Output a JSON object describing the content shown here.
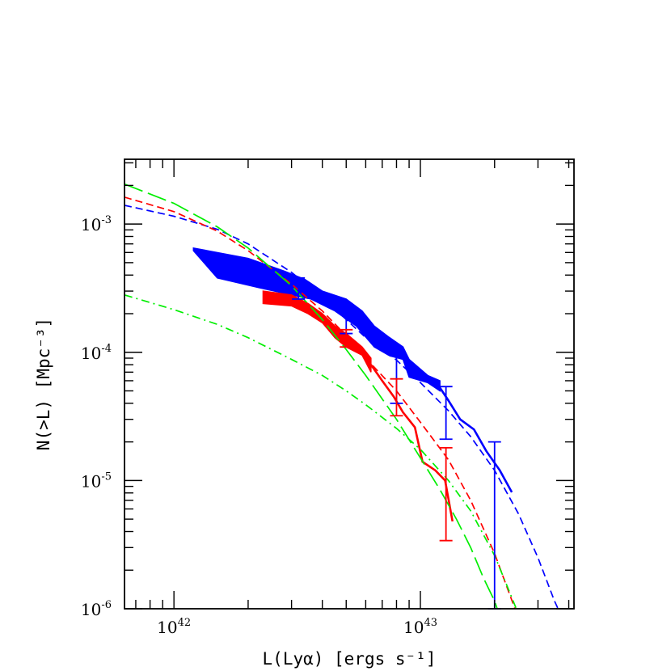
{
  "chart_data": {
    "type": "line",
    "title": "",
    "xlabel": "L(Lyα) [ergs s⁻¹]",
    "ylabel": "N(>L) [Mpc⁻³]",
    "xscale": "log",
    "yscale": "log",
    "xlim": [
      6.3e+41,
      4.2e+43
    ],
    "ylim": [
      1e-06,
      0.0032
    ],
    "x_major_ticks": [
      {
        "value": 1e+42,
        "base": "10",
        "exp": "42"
      },
      {
        "value": 1e+43,
        "base": "10",
        "exp": "43"
      }
    ],
    "y_major_ticks": [
      {
        "value": 0.001,
        "base": "10",
        "exp": "-3"
      },
      {
        "value": 0.0001,
        "base": "10",
        "exp": "-4"
      },
      {
        "value": 1e-05,
        "base": "10",
        "exp": "-5"
      },
      {
        "value": 1e-06,
        "base": "10",
        "exp": "-6"
      }
    ],
    "grid": false,
    "legend": "none",
    "series": [
      {
        "kind": "band",
        "color": "#0000ff",
        "upper": [
          [
            1.2e+42,
            0.00065
          ],
          [
            2e+42,
            0.00054
          ],
          [
            2.8e+42,
            0.00043
          ],
          [
            3.4e+42,
            0.00037
          ],
          [
            4e+42,
            0.0003
          ],
          [
            5e+42,
            0.00026
          ],
          [
            5.8e+42,
            0.00021
          ],
          [
            6.5e+42,
            0.00016
          ],
          [
            7.5e+42,
            0.00013
          ],
          [
            8.5e+42,
            0.00011
          ],
          [
            9e+42,
            8.8e-05
          ],
          [
            1.07e+43,
            6.6e-05
          ],
          [
            1.2e+43,
            6e-05
          ]
        ],
        "lower": [
          [
            1.2e+42,
            0.00062
          ],
          [
            1.5e+42,
            0.00038
          ],
          [
            2.2e+42,
            0.00032
          ],
          [
            3e+42,
            0.00028
          ],
          [
            3.6e+42,
            0.00026
          ],
          [
            4.5e+42,
            0.00021
          ],
          [
            5.5e+42,
            0.00016
          ],
          [
            6.5e+42,
            0.00011
          ],
          [
            7.5e+42,
            9.4e-05
          ],
          [
            8.5e+42,
            8.8e-05
          ],
          [
            9e+42,
            6.4e-05
          ],
          [
            1.07e+43,
            5.8e-05
          ],
          [
            1.2e+43,
            5e-05
          ]
        ]
      },
      {
        "kind": "band",
        "color": "#ff0000",
        "upper": [
          [
            2.3e+42,
            0.0003
          ],
          [
            3e+42,
            0.00028
          ],
          [
            3.5e+42,
            0.00024
          ],
          [
            4e+42,
            0.0002
          ],
          [
            4.5e+42,
            0.00016
          ],
          [
            5e+42,
            0.00014
          ],
          [
            5.8e+42,
            0.00011
          ],
          [
            6.3e+42,
            9e-05
          ]
        ],
        "lower": [
          [
            2.3e+42,
            0.00024
          ],
          [
            3e+42,
            0.00023
          ],
          [
            3.5e+42,
            0.0002
          ],
          [
            4e+42,
            0.00017
          ],
          [
            4.5e+42,
            0.00013
          ],
          [
            5e+42,
            0.00011
          ],
          [
            5.8e+42,
            9.5e-05
          ],
          [
            6.3e+42,
            7e-05
          ]
        ]
      },
      {
        "kind": "line",
        "style": "solid",
        "color": "#0000ff",
        "points": [
          [
            1.2e+43,
            5.3e-05
          ],
          [
            1.3e+43,
            4.2e-05
          ],
          [
            1.45e+43,
            3e-05
          ],
          [
            1.65e+43,
            2.5e-05
          ],
          [
            1.85e+43,
            1.7e-05
          ],
          [
            2.1e+43,
            1.2e-05
          ],
          [
            2.35e+43,
            8.1e-06
          ]
        ]
      },
      {
        "kind": "line",
        "style": "solid",
        "color": "#ff0000",
        "points": [
          [
            6.3e+42,
            8e-05
          ],
          [
            7e+42,
            6e-05
          ],
          [
            7.8e+42,
            4.5e-05
          ],
          [
            8.5e+42,
            3.4e-05
          ],
          [
            9.5e+42,
            2.6e-05
          ],
          [
            1.02e+43,
            1.4e-05
          ],
          [
            1.15e+43,
            1.2e-05
          ],
          [
            1.26e+43,
            1e-05
          ],
          [
            1.35e+43,
            4.8e-06
          ]
        ]
      },
      {
        "kind": "line",
        "style": "dashed",
        "color": "#0000ff",
        "points": [
          [
            6.3e+41,
            0.0014
          ],
          [
            1e+42,
            0.00115
          ],
          [
            1.5e+42,
            0.00091
          ],
          [
            2e+42,
            0.0007
          ],
          [
            3e+42,
            0.00042
          ],
          [
            4e+42,
            0.00027
          ],
          [
            5e+42,
            0.00018
          ],
          [
            6e+42,
            0.00013
          ],
          [
            8e+42,
            8.7e-05
          ],
          [
            1e+43,
            5.8e-05
          ],
          [
            1.3e+43,
            3.5e-05
          ],
          [
            1.6e+43,
            2.2e-05
          ],
          [
            2e+43,
            1.2e-05
          ],
          [
            2.5e+43,
            5.5e-06
          ],
          [
            3e+43,
            2.5e-06
          ],
          [
            3.5e+43,
            1.15e-06
          ],
          [
            3.62e+43,
            1e-06
          ]
        ]
      },
      {
        "kind": "line",
        "style": "dashed",
        "color": "#ff0000",
        "points": [
          [
            6.3e+41,
            0.00162
          ],
          [
            1e+42,
            0.00125
          ],
          [
            1.5e+42,
            0.00088
          ],
          [
            2e+42,
            0.00062
          ],
          [
            3e+42,
            0.00034
          ],
          [
            4e+42,
            0.00021
          ],
          [
            5e+42,
            0.000135
          ],
          [
            6e+42,
            9e-05
          ],
          [
            8e+42,
            5e-05
          ],
          [
            1e+43,
            2.85e-05
          ],
          [
            1.3e+43,
            1.45e-05
          ],
          [
            1.6e+43,
            7e-06
          ],
          [
            2e+43,
            2.7e-06
          ],
          [
            2.3e+43,
            1.3e-06
          ],
          [
            2.42e+43,
            1e-06
          ]
        ]
      },
      {
        "kind": "line",
        "style": "long-dash",
        "color": "#00ee00",
        "points": [
          [
            6.3e+41,
            0.00205
          ],
          [
            1e+42,
            0.00145
          ],
          [
            1.5e+42,
            0.00095
          ],
          [
            2e+42,
            0.00065
          ],
          [
            3e+42,
            0.00033
          ],
          [
            4e+42,
            0.00018
          ],
          [
            5e+42,
            0.000105
          ],
          [
            6e+42,
            6.6e-05
          ],
          [
            8e+42,
            3e-05
          ],
          [
            1e+43,
            1.5e-05
          ],
          [
            1.2e+43,
            8.5e-06
          ],
          [
            1.4e+43,
            5e-06
          ],
          [
            1.6e+43,
            3e-06
          ],
          [
            1.8e+43,
            1.75e-06
          ],
          [
            2e+43,
            1.15e-06
          ],
          [
            2.05e+43,
            1e-06
          ]
        ]
      },
      {
        "kind": "line",
        "style": "dash-dot",
        "color": "#00ee00",
        "points": [
          [
            6.3e+41,
            0.00028
          ],
          [
            1e+42,
            0.000215
          ],
          [
            1.5e+42,
            0.000165
          ],
          [
            2e+42,
            0.00013
          ],
          [
            3e+42,
            8.8e-05
          ],
          [
            4e+42,
            6.6e-05
          ],
          [
            5e+42,
            5e-05
          ],
          [
            6e+42,
            3.9e-05
          ],
          [
            8e+42,
            2.55e-05
          ],
          [
            1e+43,
            1.75e-05
          ],
          [
            1.3e+43,
            1e-05
          ],
          [
            1.6e+43,
            5.8e-06
          ],
          [
            2e+43,
            2.6e-06
          ],
          [
            2.25e+43,
            1.5e-06
          ],
          [
            2.45e+43,
            1e-06
          ]
        ]
      }
    ],
    "error_bars": [
      {
        "color": "#0000ff",
        "x": 3.2e+42,
        "low": 0.00026,
        "high": 0.00038
      },
      {
        "color": "#0000ff",
        "x": 5e+42,
        "low": 0.00014,
        "high": 0.00022
      },
      {
        "color": "#0000ff",
        "x": 8e+42,
        "low": 4e-05,
        "high": 0.0001
      },
      {
        "color": "#0000ff",
        "x": 1.27e+43,
        "low": 2.1e-05,
        "high": 5.4e-05
      },
      {
        "color": "#0000ff",
        "x": 2e+43,
        "low": 1e-06,
        "high": 2e-05
      },
      {
        "color": "#ff0000",
        "x": 5e+42,
        "low": 0.00011,
        "high": 0.00015
      },
      {
        "color": "#ff0000",
        "x": 8e+42,
        "low": 3.2e-05,
        "high": 6.2e-05
      },
      {
        "color": "#ff0000",
        "x": 1.27e+43,
        "low": 3.4e-06,
        "high": 1.8e-05
      }
    ]
  }
}
